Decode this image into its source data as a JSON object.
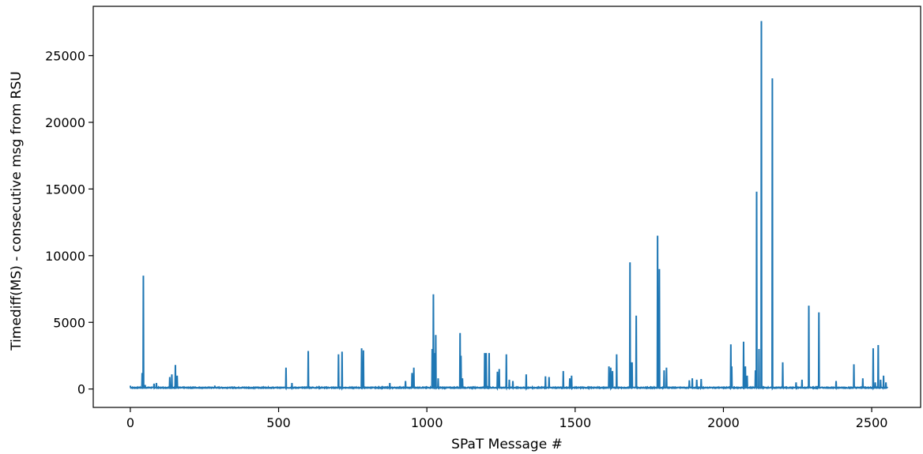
{
  "chart_data": {
    "type": "line",
    "title": "",
    "xlabel": "SPaT Message #",
    "ylabel": "Timediff(MS) - consecutive msg from RSU",
    "xlim": [
      -125,
      2665
    ],
    "ylim": [
      -1380,
      28700
    ],
    "xticks": [
      0,
      500,
      1000,
      1500,
      2000,
      2500
    ],
    "yticks": [
      0,
      5000,
      10000,
      15000,
      20000,
      25000
    ],
    "grid": false,
    "baseline": 100,
    "n_points": 2555,
    "series": [
      {
        "color": "#1f77b4",
        "spikes": [
          [
            0,
            250
          ],
          [
            40,
            1200
          ],
          [
            44,
            8500
          ],
          [
            50,
            300
          ],
          [
            80,
            400
          ],
          [
            88,
            450
          ],
          [
            133,
            900
          ],
          [
            140,
            1100
          ],
          [
            152,
            1800
          ],
          [
            158,
            1000
          ],
          [
            285,
            250
          ],
          [
            525,
            1600
          ],
          [
            545,
            450
          ],
          [
            600,
            2850
          ],
          [
            702,
            2600
          ],
          [
            714,
            2800
          ],
          [
            780,
            3050
          ],
          [
            786,
            2900
          ],
          [
            875,
            450
          ],
          [
            928,
            600
          ],
          [
            950,
            1200
          ],
          [
            956,
            1600
          ],
          [
            1018,
            3000
          ],
          [
            1022,
            7100
          ],
          [
            1027,
            2700
          ],
          [
            1030,
            4050
          ],
          [
            1038,
            800
          ],
          [
            1112,
            4200
          ],
          [
            1115,
            2500
          ],
          [
            1120,
            800
          ],
          [
            1195,
            2700
          ],
          [
            1200,
            2700
          ],
          [
            1210,
            2700
          ],
          [
            1238,
            1300
          ],
          [
            1244,
            1500
          ],
          [
            1268,
            2600
          ],
          [
            1278,
            700
          ],
          [
            1290,
            600
          ],
          [
            1335,
            1100
          ],
          [
            1400,
            950
          ],
          [
            1412,
            900
          ],
          [
            1460,
            1350
          ],
          [
            1482,
            800
          ],
          [
            1488,
            1000
          ],
          [
            1614,
            1700
          ],
          [
            1620,
            1600
          ],
          [
            1626,
            1350
          ],
          [
            1640,
            2600
          ],
          [
            1685,
            9500
          ],
          [
            1688,
            2000
          ],
          [
            1692,
            2000
          ],
          [
            1706,
            5500
          ],
          [
            1778,
            11500
          ],
          [
            1784,
            9000
          ],
          [
            1800,
            1400
          ],
          [
            1808,
            1600
          ],
          [
            1885,
            650
          ],
          [
            1895,
            800
          ],
          [
            1910,
            700
          ],
          [
            1925,
            750
          ],
          [
            2025,
            3350
          ],
          [
            2028,
            1700
          ],
          [
            2068,
            3550
          ],
          [
            2074,
            1700
          ],
          [
            2080,
            1000
          ],
          [
            2108,
            1400
          ],
          [
            2112,
            14800
          ],
          [
            2120,
            3000
          ],
          [
            2128,
            27600
          ],
          [
            2165,
            23300
          ],
          [
            2200,
            2000
          ],
          [
            2245,
            500
          ],
          [
            2265,
            700
          ],
          [
            2288,
            6250
          ],
          [
            2322,
            5750
          ],
          [
            2380,
            600
          ],
          [
            2440,
            1850
          ],
          [
            2470,
            800
          ],
          [
            2505,
            3050
          ],
          [
            2512,
            500
          ],
          [
            2522,
            3300
          ],
          [
            2530,
            700
          ],
          [
            2540,
            1000
          ],
          [
            2548,
            500
          ]
        ]
      }
    ]
  }
}
